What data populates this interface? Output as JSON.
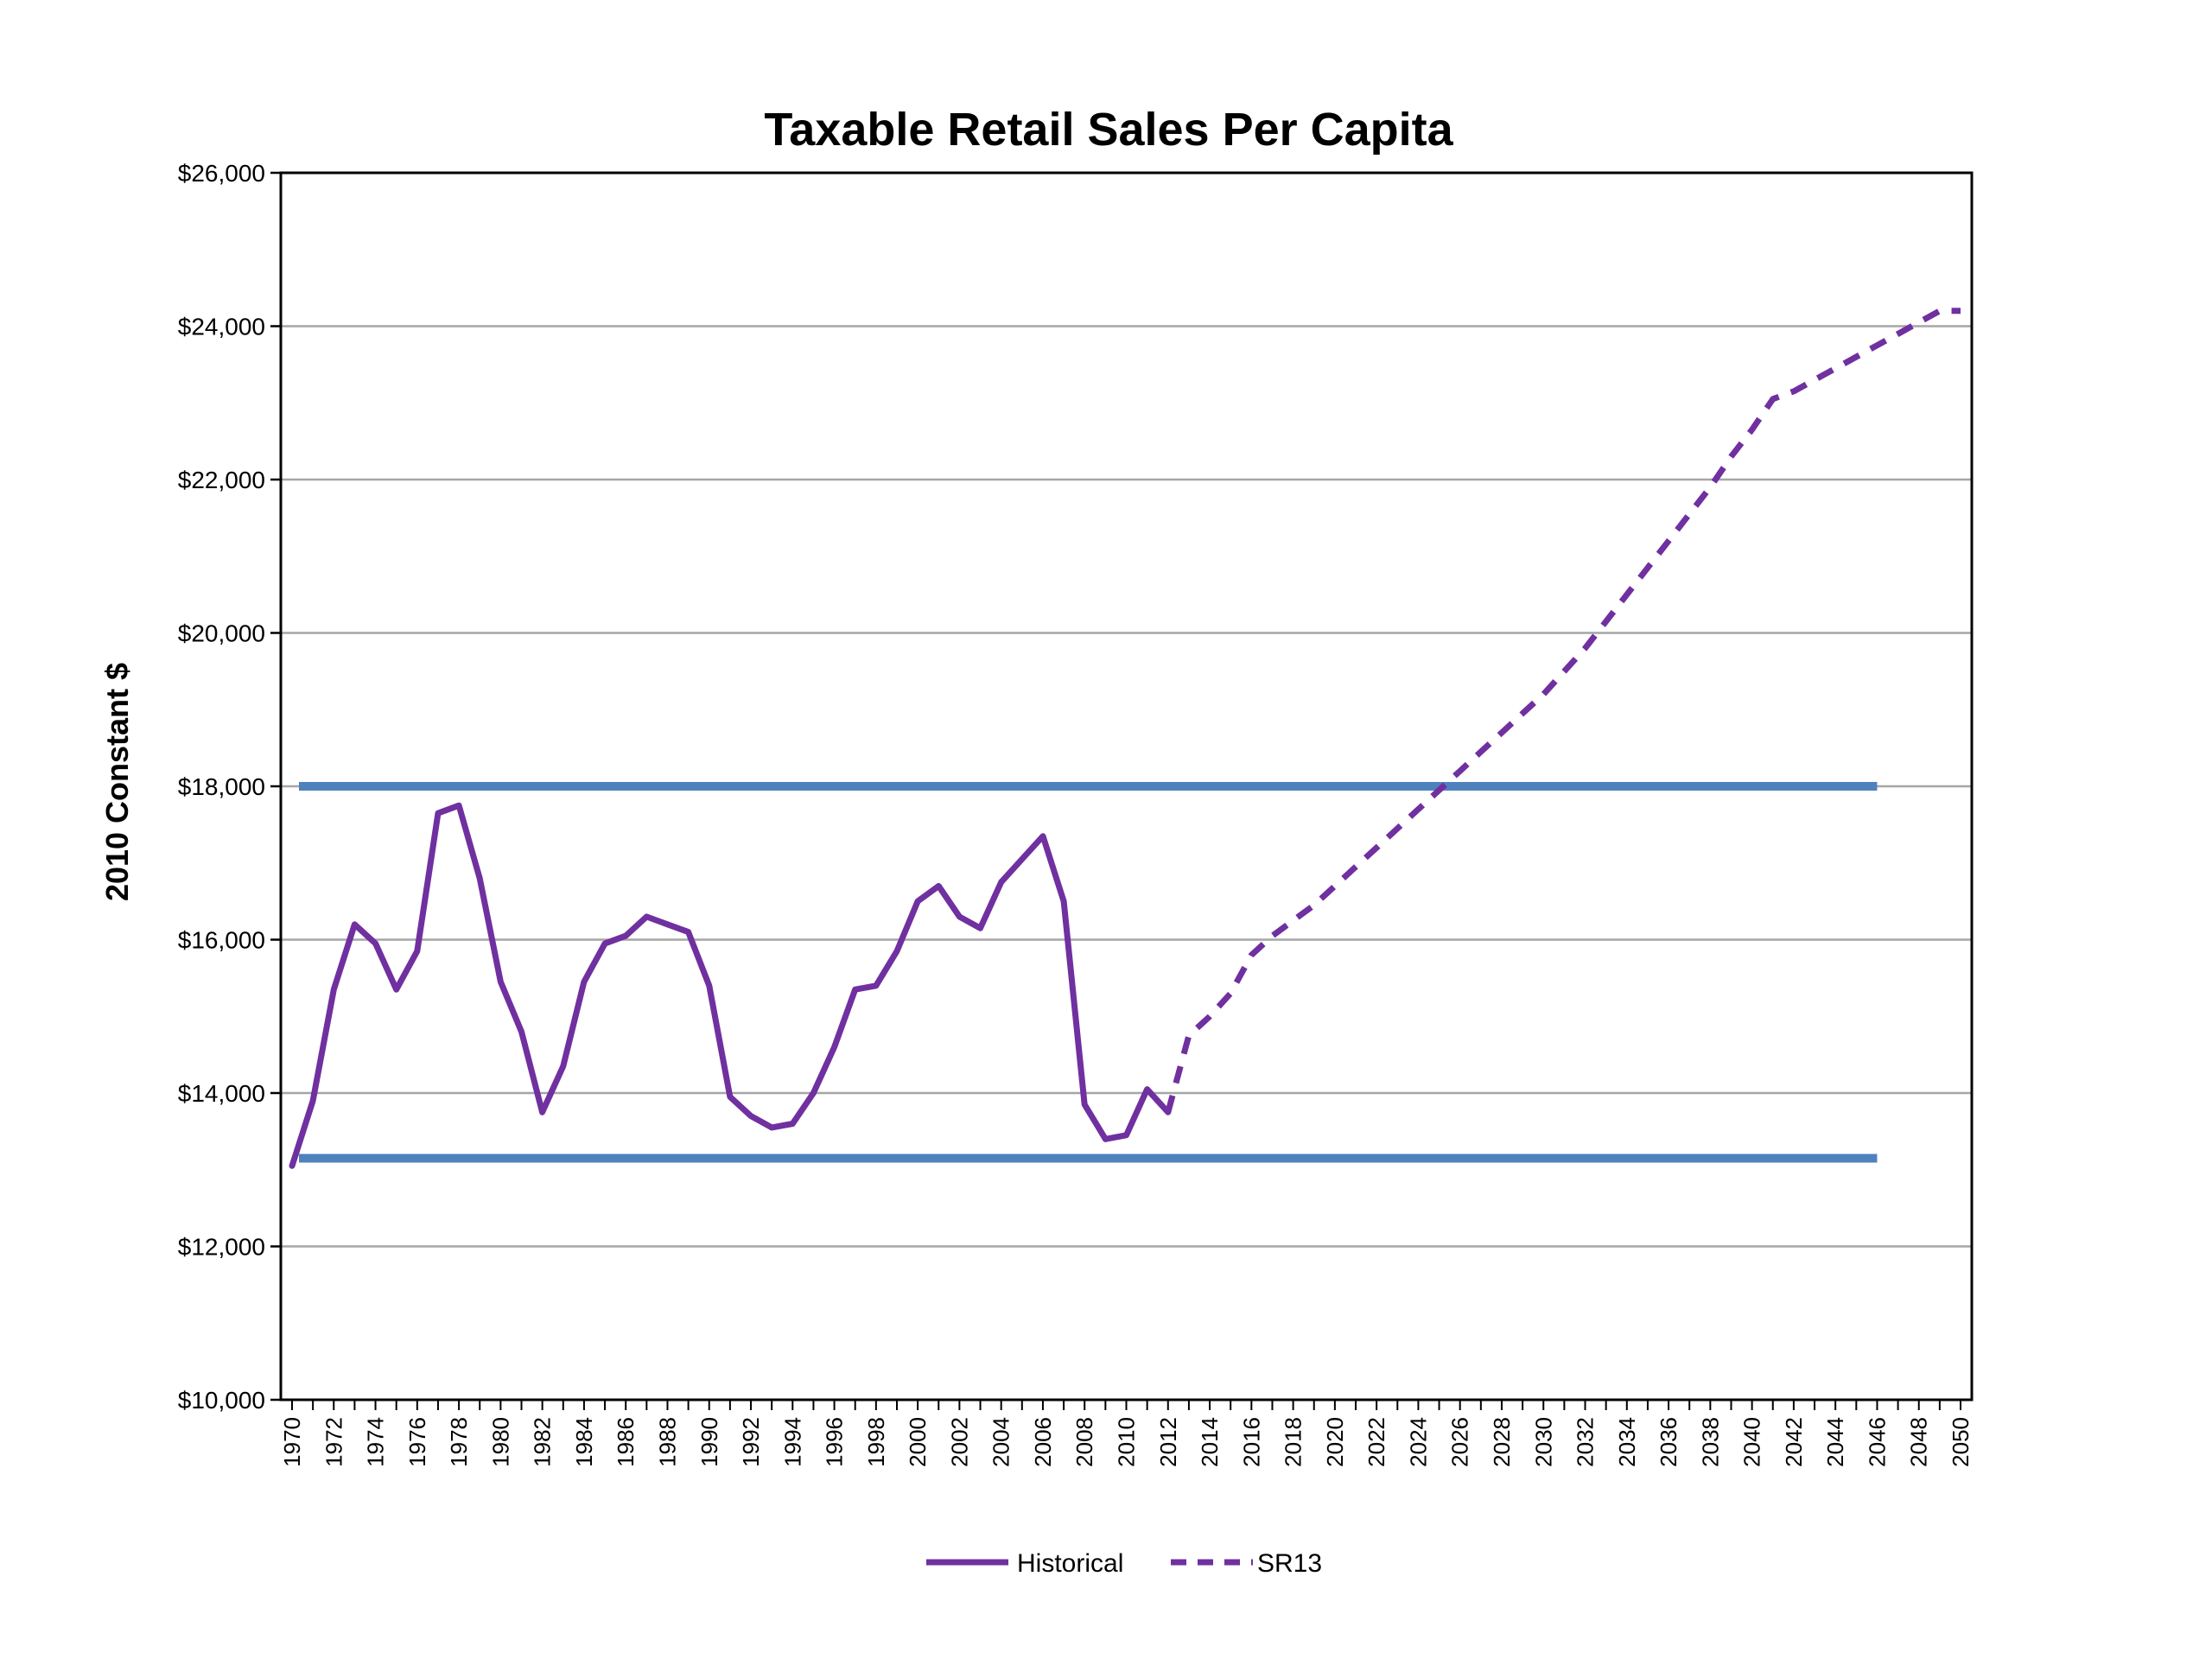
{
  "chart_data": {
    "type": "line",
    "title": "Taxable Retail Sales Per Capita",
    "ylabel": "2010 Constant $",
    "xlabel": "",
    "xlim": [
      1970,
      2050
    ],
    "ylim": [
      10000,
      26000
    ],
    "y_ticks": [
      10000,
      12000,
      14000,
      16000,
      18000,
      20000,
      22000,
      24000,
      26000
    ],
    "y_tick_labels": [
      "$10,000",
      "$12,000",
      "$14,000",
      "$16,000",
      "$18,000",
      "$20,000",
      "$22,000",
      "$24,000",
      "$26,000"
    ],
    "x_tick_labels": [
      "1970",
      "1972",
      "1974",
      "1976",
      "1978",
      "1980",
      "1982",
      "1984",
      "1986",
      "1988",
      "1990",
      "1992",
      "1994",
      "1996",
      "1998",
      "2000",
      "2002",
      "2004",
      "2006",
      "2008",
      "2010",
      "2012",
      "2014",
      "2016",
      "2018",
      "2020",
      "2022",
      "2024",
      "2026",
      "2028",
      "2030",
      "2032",
      "2034",
      "2036",
      "2038",
      "2040",
      "2042",
      "2044",
      "2046",
      "2048",
      "2050"
    ],
    "grid": "horizontal",
    "legend_position": "bottom",
    "series": [
      {
        "name": "Historical",
        "style": "solid",
        "color": "#7030A0",
        "x": [
          1970,
          1971,
          1972,
          1973,
          1974,
          1975,
          1976,
          1977,
          1978,
          1979,
          1980,
          1981,
          1982,
          1983,
          1984,
          1985,
          1986,
          1987,
          1988,
          1989,
          1990,
          1991,
          1992,
          1993,
          1994,
          1995,
          1996,
          1997,
          1998,
          1999,
          2000,
          2001,
          2002,
          2003,
          2004,
          2005,
          2006,
          2007,
          2008,
          2009,
          2010,
          2011,
          2012
        ],
        "values": [
          13050,
          13900,
          15350,
          16200,
          15950,
          15350,
          15850,
          17650,
          17750,
          16800,
          15450,
          14800,
          13750,
          14350,
          15450,
          15950,
          16050,
          16300,
          16200,
          16100,
          15400,
          13950,
          13700,
          13550,
          13600,
          14000,
          14600,
          15350,
          15400,
          15850,
          16500,
          16700,
          16300,
          16150,
          16750,
          17050,
          17350,
          16500,
          13850,
          13400,
          13450,
          14050,
          13750
        ]
      },
      {
        "name": "SR13",
        "style": "dashed",
        "color": "#7030A0",
        "x": [
          2012,
          2013,
          2014,
          2015,
          2016,
          2017,
          2018,
          2019,
          2020,
          2021,
          2022,
          2023,
          2024,
          2025,
          2026,
          2027,
          2028,
          2029,
          2030,
          2031,
          2032,
          2033,
          2034,
          2035,
          2036,
          2037,
          2038,
          2039,
          2040,
          2041,
          2042,
          2043,
          2044,
          2045,
          2046,
          2047,
          2048,
          2049,
          2050
        ],
        "values": [
          13750,
          14750,
          15000,
          15300,
          15800,
          16050,
          16250,
          16450,
          16700,
          16950,
          17200,
          17450,
          17700,
          17950,
          18200,
          18450,
          18700,
          18950,
          19200,
          19500,
          19800,
          20150,
          20500,
          20850,
          21200,
          21550,
          21900,
          22300,
          22650,
          23050,
          23150,
          23300,
          23450,
          23600,
          23750,
          23900,
          24050,
          24200,
          24200
        ]
      }
    ],
    "reference_lines": [
      {
        "y": 18000,
        "x_start": 1970,
        "x_end": 2046,
        "color": "#4F81BD"
      },
      {
        "y": 13150,
        "x_start": 1970,
        "x_end": 2046,
        "color": "#4F81BD"
      }
    ]
  }
}
